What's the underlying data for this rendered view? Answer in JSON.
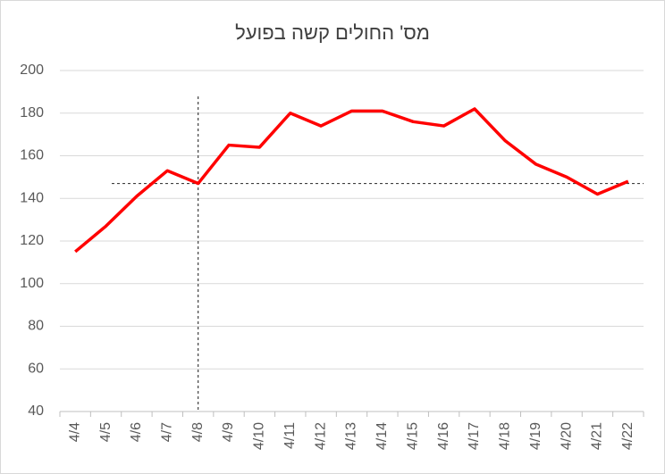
{
  "chart_data": {
    "type": "line",
    "title": "מס' החולים קשה בפועל",
    "categories": [
      "4/4",
      "4/5",
      "4/6",
      "4/7",
      "4/8",
      "4/9",
      "4/10",
      "4/11",
      "4/12",
      "4/13",
      "4/14",
      "4/15",
      "4/16",
      "4/17",
      "4/18",
      "4/19",
      "4/20",
      "4/21",
      "4/22"
    ],
    "series": [
      {
        "name": "חולים קשה",
        "color": "#ff0000",
        "values": [
          115,
          127,
          141,
          153,
          147,
          165,
          164,
          180,
          174,
          181,
          181,
          176,
          174,
          182,
          167,
          156,
          150,
          142,
          148
        ]
      }
    ],
    "ylim": [
      40,
      200
    ],
    "yticks": [
      40,
      60,
      80,
      100,
      120,
      140,
      160,
      180,
      200
    ],
    "grid": true,
    "hline": 147,
    "vline": "4/8"
  }
}
